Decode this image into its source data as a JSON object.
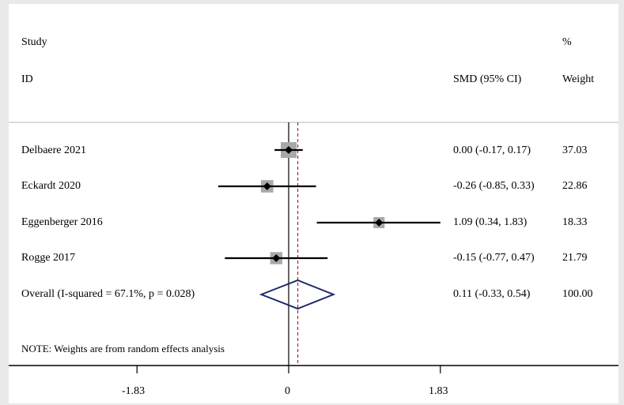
{
  "chart_data": {
    "type": "forest",
    "headers": {
      "study_line1": "Study",
      "study_line2": "ID",
      "effect": "SMD (95% CI)",
      "weight_line1": "%",
      "weight_line2": "Weight"
    },
    "studies": [
      {
        "label": "Delbaere 2021",
        "smd": 0.0,
        "lower": -0.17,
        "upper": 0.17,
        "ci_text": "0.00 (-0.17, 0.17)",
        "weight": 37.03,
        "weight_text": "37.03"
      },
      {
        "label": "Eckardt 2020",
        "smd": -0.26,
        "lower": -0.85,
        "upper": 0.33,
        "ci_text": "-0.26 (-0.85, 0.33)",
        "weight": 22.86,
        "weight_text": "22.86"
      },
      {
        "label": "Eggenberger  2016",
        "smd": 1.09,
        "lower": 0.34,
        "upper": 1.83,
        "ci_text": "1.09 (0.34, 1.83)",
        "weight": 18.33,
        "weight_text": "18.33"
      },
      {
        "label": "Rogge 2017",
        "smd": -0.15,
        "lower": -0.77,
        "upper": 0.47,
        "ci_text": "-0.15 (-0.77, 0.47)",
        "weight": 21.79,
        "weight_text": "21.79"
      }
    ],
    "overall": {
      "label": "Overall  (I-squared = 67.1%, p = 0.028)",
      "smd": 0.11,
      "lower": -0.33,
      "upper": 0.54,
      "ci_text": "0.11 (-0.33, 0.54)",
      "weight_text": "100.00"
    },
    "note": "NOTE: Weights are from random effects analysis",
    "xaxis": {
      "ticks": [
        -1.83,
        0,
        1.83
      ],
      "tick_labels": [
        "-1.83",
        "0",
        "1.83"
      ],
      "xlim": [
        -1.83,
        1.83
      ]
    },
    "colors": {
      "diamond": "#1f2a6b",
      "overall_line": "#b22222",
      "box": "#a9a9a9",
      "frame": "#e9e9e9"
    }
  }
}
